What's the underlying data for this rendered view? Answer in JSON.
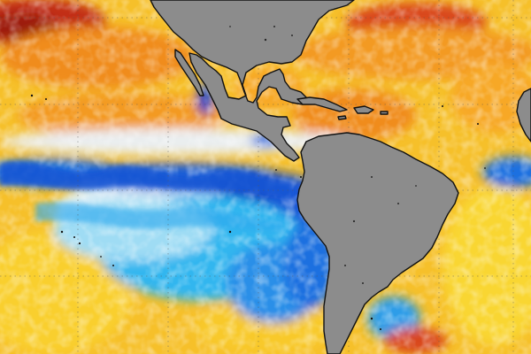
{
  "map": {
    "colors": {
      "warm_dark": "#a8200e",
      "warm_red": "#d9461c",
      "warm_orange": "#f08c1e",
      "warm_amber": "#f7b22a",
      "warm_yellow": "#f8d12e",
      "neutral_light": "#e8ecee",
      "cool_light": "#bfe9f7",
      "cool_cyan": "#33b6ef",
      "cool_blue": "#1f6fe0",
      "cool_deep": "#1744c4",
      "land": "#8c8c8c",
      "coast": "#111111",
      "grid": "#555555"
    }
  }
}
